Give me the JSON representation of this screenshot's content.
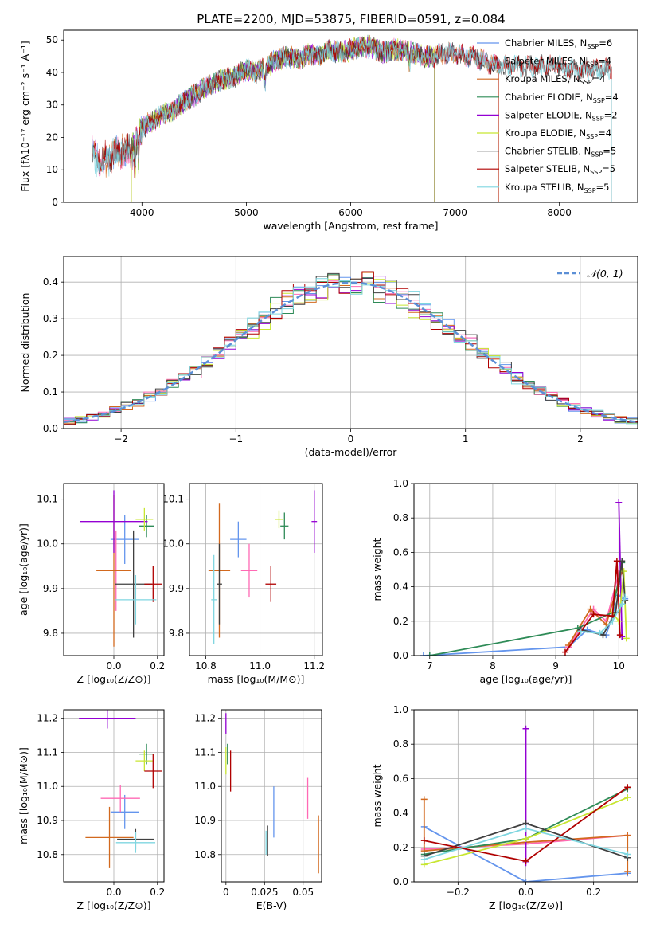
{
  "title": "PLATE=2200, MJD=53875, FIBERID=0591, z=0.084",
  "colors": {
    "ChabrierMILES": "#6495ed",
    "SalpeterMILES": "#ff69b4",
    "KroupaMILES": "#d2691e",
    "ChabrierELODIE": "#2e8b57",
    "SalpeterELODIE": "#9400d3",
    "KroupaELODIE": "#c8e632",
    "ChabrierSTELIB": "#404040",
    "SalpeterSTELIB": "#b00000",
    "KroupaSTELIB": "#7fd6e0",
    "normal": "#5b8fd6"
  },
  "legend_spectrum": [
    {
      "base": "Chabrier MILES, N",
      "sub": "SSP",
      "tail": "=6",
      "color_key": "ChabrierMILES"
    },
    {
      "base": "Salpeter MILES, N",
      "sub": "SSP",
      "tail": "=4",
      "color_key": "SalpeterMILES"
    },
    {
      "base": "Kroupa MILES, N",
      "sub": "SSP",
      "tail": "=4",
      "color_key": "KroupaMILES"
    },
    {
      "base": "Chabrier ELODIE, N",
      "sub": "SSP",
      "tail": "=4",
      "color_key": "ChabrierELODIE"
    },
    {
      "base": "Salpeter ELODIE, N",
      "sub": "SSP",
      "tail": "=2",
      "color_key": "SalpeterELODIE"
    },
    {
      "base": "Kroupa ELODIE, N",
      "sub": "SSP",
      "tail": "=4",
      "color_key": "KroupaELODIE"
    },
    {
      "base": "Chabrier STELIB, N",
      "sub": "SSP",
      "tail": "=5",
      "color_key": "ChabrierSTELIB"
    },
    {
      "base": "Salpeter STELIB, N",
      "sub": "SSP",
      "tail": "=5",
      "color_key": "SalpeterSTELIB"
    },
    {
      "base": "Kroupa STELIB, N",
      "sub": "SSP",
      "tail": "=5",
      "color_key": "KroupaSTELIB"
    }
  ],
  "chart_data": [
    {
      "id": "spectrum",
      "type": "line",
      "xlabel": "wavelength [Angstrom, rest frame]",
      "ylabel": "Flux [fλ10⁻¹⁷ erg cm⁻² s⁻¹ A⁻¹]",
      "xlim": [
        3250,
        8750
      ],
      "ylim": [
        0,
        53
      ],
      "xticks": [
        4000,
        5000,
        6000,
        7000,
        8000
      ],
      "yticks": [
        0,
        10,
        20,
        30,
        40,
        50
      ],
      "grid": false,
      "legend": "top-right",
      "envelope": {
        "x": [
          3520,
          3600,
          3700,
          3800,
          3900,
          4000,
          4100,
          4200,
          4300,
          4400,
          4500,
          4600,
          4700,
          4800,
          4900,
          5000,
          5100,
          5200,
          5300,
          5400,
          5500,
          5600,
          5700,
          5800,
          5900,
          6000,
          6100,
          6200,
          6300,
          6400,
          6500,
          6600,
          6700,
          6800,
          6900,
          7000,
          7100,
          7200,
          7300,
          7400,
          7500,
          7600,
          7700,
          7800,
          7900,
          8000,
          8100,
          8200,
          8300,
          8400,
          8500
        ],
        "y": [
          16,
          12,
          14,
          16,
          15,
          23,
          25,
          27,
          28,
          31,
          33,
          35,
          37,
          38,
          39,
          41,
          40,
          42,
          44,
          45,
          44,
          46,
          45,
          47,
          46,
          47,
          48,
          48,
          46,
          47,
          47,
          46,
          45,
          45,
          46,
          46,
          45,
          45,
          43,
          42,
          42,
          42,
          42,
          42,
          42,
          42,
          41,
          41,
          41,
          41,
          41
        ]
      },
      "model_ranges": [
        {
          "key": "ChabrierMILES",
          "x": [
            3520,
            7420
          ]
        },
        {
          "key": "SalpeterMILES",
          "x": [
            3520,
            7420
          ]
        },
        {
          "key": "KroupaMILES",
          "x": [
            3520,
            7420
          ]
        },
        {
          "key": "ChabrierELODIE",
          "x": [
            3900,
            6800
          ]
        },
        {
          "key": "SalpeterELODIE",
          "x": [
            3900,
            6800
          ]
        },
        {
          "key": "KroupaELODIE",
          "x": [
            3900,
            6800
          ]
        },
        {
          "key": "ChabrierSTELIB",
          "x": [
            3520,
            8500
          ]
        },
        {
          "key": "SalpeterSTELIB",
          "x": [
            3520,
            8500
          ]
        },
        {
          "key": "KroupaSTELIB",
          "x": [
            3520,
            8500
          ]
        }
      ]
    },
    {
      "id": "residuals",
      "type": "line",
      "xlabel": "(data-model)/error",
      "ylabel": "Normed distribution",
      "xlim": [
        -2.5,
        2.5
      ],
      "ylim": [
        0,
        0.47
      ],
      "xticks": [
        -2,
        -1,
        0,
        1,
        2
      ],
      "yticks": [
        0.0,
        0.1,
        0.2,
        0.3,
        0.4
      ],
      "grid": true,
      "legend": "top-right",
      "legend_label": "𝒩(0, 1)",
      "bin_width": 0.1,
      "series_keys": [
        "ChabrierMILES",
        "SalpeterMILES",
        "KroupaMILES",
        "ChabrierELODIE",
        "SalpeterELODIE",
        "KroupaELODIE",
        "ChabrierSTELIB",
        "SalpeterSTELIB",
        "KroupaSTELIB"
      ]
    },
    {
      "id": "age_vs_Z",
      "type": "scatter",
      "xlabel": "Z [log₁₀(Z/Z⊙)]",
      "ylabel": "age  [log₁₀(age/yr)]",
      "xlim": [
        -0.23,
        0.23
      ],
      "ylim": [
        9.75,
        10.135
      ],
      "xticks": [
        0.0,
        0.2
      ],
      "yticks": [
        9.8,
        9.9,
        10.0,
        10.1
      ],
      "grid": true,
      "points": [
        {
          "key": "ChabrierMILES",
          "x": 0.05,
          "y": 10.01,
          "xerr": 0.065,
          "yerr": 0.055
        },
        {
          "key": "SalpeterMILES",
          "x": 0.01,
          "y": 9.94,
          "xerr": 0.07,
          "yerr": 0.09
        },
        {
          "key": "KroupaMILES",
          "x": 0.0,
          "y": 9.94,
          "xerr": 0.08,
          "yerr": 0.17
        },
        {
          "key": "ChabrierELODIE",
          "x": 0.15,
          "y": 10.04,
          "xerr": 0.035,
          "yerr": 0.025
        },
        {
          "key": "SalpeterELODIE",
          "x": 0.0,
          "y": 10.05,
          "xerr": 0.155,
          "yerr": 0.07
        },
        {
          "key": "KroupaELODIE",
          "x": 0.14,
          "y": 10.055,
          "xerr": 0.04,
          "yerr": 0.025
        },
        {
          "key": "ChabrierSTELIB",
          "x": 0.09,
          "y": 9.91,
          "xerr": 0.085,
          "yerr": 0.12
        },
        {
          "key": "SalpeterSTELIB",
          "x": 0.18,
          "y": 9.91,
          "xerr": 0.04,
          "yerr": 0.04
        },
        {
          "key": "KroupaSTELIB",
          "x": 0.1,
          "y": 9.875,
          "xerr": 0.095,
          "yerr": 0.055
        }
      ]
    },
    {
      "id": "age_vs_mass",
      "type": "scatter",
      "xlabel": "mass [log₁₀(M/M⊙)]",
      "ylabel": "",
      "xlim": [
        10.74,
        11.23
      ],
      "ylim": [
        9.75,
        10.135
      ],
      "xticks": [
        10.8,
        11.0,
        11.2
      ],
      "yticks": [
        9.8,
        9.9,
        10.0,
        10.1
      ],
      "grid": true,
      "points": [
        {
          "key": "ChabrierMILES",
          "x": 10.92,
          "y": 10.01,
          "xerr": 0.03,
          "yerr": 0.04
        },
        {
          "key": "SalpeterMILES",
          "x": 10.96,
          "y": 9.94,
          "xerr": 0.03,
          "yerr": 0.06
        },
        {
          "key": "KroupaMILES",
          "x": 10.85,
          "y": 9.94,
          "xerr": 0.04,
          "yerr": 0.15
        },
        {
          "key": "ChabrierELODIE",
          "x": 11.09,
          "y": 10.04,
          "xerr": 0.015,
          "yerr": 0.03
        },
        {
          "key": "SalpeterELODIE",
          "x": 11.2,
          "y": 10.05,
          "xerr": 0.01,
          "yerr": 0.07
        },
        {
          "key": "KroupaELODIE",
          "x": 11.07,
          "y": 10.055,
          "xerr": 0.015,
          "yerr": 0.02
        },
        {
          "key": "ChabrierSTELIB",
          "x": 10.85,
          "y": 9.91,
          "xerr": 0.01,
          "yerr": 0.09
        },
        {
          "key": "SalpeterSTELIB",
          "x": 11.04,
          "y": 9.91,
          "xerr": 0.02,
          "yerr": 0.04
        },
        {
          "key": "KroupaSTELIB",
          "x": 10.83,
          "y": 9.875,
          "xerr": 0.01,
          "yerr": 0.1
        }
      ]
    },
    {
      "id": "weight_vs_age",
      "type": "line",
      "xlabel": "age  [log₁₀(age/yr)]",
      "ylabel": "mass weight",
      "xlim": [
        6.75,
        10.3
      ],
      "ylim": [
        0,
        1.0
      ],
      "xticks": [
        7,
        8,
        9,
        10
      ],
      "yticks": [
        0.0,
        0.2,
        0.4,
        0.6,
        0.8,
        1.0
      ],
      "grid": true,
      "series": [
        {
          "key": "ChabrierMILES",
          "x": [
            6.9,
            9.2,
            9.5,
            9.8,
            10.0,
            10.1
          ],
          "y": [
            0.0,
            0.05,
            0.15,
            0.12,
            0.35,
            0.33
          ]
        },
        {
          "key": "SalpeterMILES",
          "x": [
            9.2,
            9.6,
            9.8,
            10.0
          ],
          "y": [
            0.05,
            0.27,
            0.2,
            0.48
          ]
        },
        {
          "key": "KroupaMILES",
          "x": [
            9.2,
            9.55,
            9.8,
            10.05
          ],
          "y": [
            0.06,
            0.27,
            0.18,
            0.49
          ]
        },
        {
          "key": "ChabrierELODIE",
          "x": [
            7.0,
            9.35,
            9.9,
            10.05
          ],
          "y": [
            0.0,
            0.16,
            0.25,
            0.54
          ]
        },
        {
          "key": "SalpeterELODIE",
          "x": [
            10.0,
            10.05
          ],
          "y": [
            0.89,
            0.11
          ]
        },
        {
          "key": "KroupaELODIE",
          "x": [
            9.9,
            10.0,
            10.08,
            10.12
          ],
          "y": [
            0.25,
            0.2,
            0.49,
            0.1
          ]
        },
        {
          "key": "ChabrierSTELIB",
          "x": [
            9.4,
            9.75,
            9.95,
            10.05,
            10.1
          ],
          "y": [
            0.15,
            0.12,
            0.25,
            0.55,
            0.32
          ]
        },
        {
          "key": "SalpeterSTELIB",
          "x": [
            9.15,
            9.6,
            9.9,
            9.97,
            10.02
          ],
          "y": [
            0.02,
            0.24,
            0.23,
            0.55,
            0.12
          ]
        },
        {
          "key": "KroupaSTELIB",
          "x": [
            9.4,
            9.7,
            9.9,
            10.05,
            10.1
          ],
          "y": [
            0.14,
            0.13,
            0.2,
            0.3,
            0.34
          ]
        }
      ]
    },
    {
      "id": "mass_vs_Z",
      "type": "scatter",
      "xlabel": "Z [log₁₀(Z/Z⊙)]",
      "ylabel": "mass [log₁₀(M/M⊙)]",
      "xlim": [
        -0.23,
        0.23
      ],
      "ylim": [
        10.72,
        11.225
      ],
      "xticks": [
        0.0,
        0.2
      ],
      "yticks": [
        10.8,
        10.9,
        11.0,
        11.1,
        11.2
      ],
      "grid": true,
      "points": [
        {
          "key": "ChabrierMILES",
          "x": 0.05,
          "y": 10.925,
          "xerr": 0.065,
          "yerr": 0.05
        },
        {
          "key": "SalpeterMILES",
          "x": 0.03,
          "y": 10.965,
          "xerr": 0.09,
          "yerr": 0.04
        },
        {
          "key": "KroupaMILES",
          "x": -0.02,
          "y": 10.85,
          "xerr": 0.11,
          "yerr": 0.09
        },
        {
          "key": "ChabrierELODIE",
          "x": 0.15,
          "y": 11.095,
          "xerr": 0.035,
          "yerr": 0.03
        },
        {
          "key": "SalpeterELODIE",
          "x": -0.03,
          "y": 11.2,
          "xerr": 0.13,
          "yerr": 0.03
        },
        {
          "key": "KroupaELODIE",
          "x": 0.14,
          "y": 11.075,
          "xerr": 0.04,
          "yerr": 0.03
        },
        {
          "key": "ChabrierSTELIB",
          "x": 0.1,
          "y": 10.845,
          "xerr": 0.085,
          "yerr": 0.03
        },
        {
          "key": "SalpeterSTELIB",
          "x": 0.18,
          "y": 11.045,
          "xerr": 0.04,
          "yerr": 0.05
        },
        {
          "key": "KroupaSTELIB",
          "x": 0.1,
          "y": 10.835,
          "xerr": 0.09,
          "yerr": 0.03
        }
      ]
    },
    {
      "id": "mass_vs_ebv",
      "type": "scatter",
      "xlabel": "E(B-V)",
      "ylabel": "",
      "xlim": [
        -0.003,
        0.062
      ],
      "ylim": [
        10.72,
        11.225
      ],
      "xticks": [
        0.0,
        0.025,
        0.05
      ],
      "yticks": [
        10.8,
        10.9,
        11.0,
        11.1,
        11.2
      ],
      "grid": true,
      "points": [
        {
          "key": "ChabrierMILES",
          "x": 0.031,
          "y": 10.925,
          "xerr": 0.0,
          "yerr": 0.075
        },
        {
          "key": "SalpeterMILES",
          "x": 0.053,
          "y": 10.965,
          "xerr": 0.0,
          "yerr": 0.06
        },
        {
          "key": "KroupaMILES",
          "x": 0.06,
          "y": 10.83,
          "xerr": 0.0,
          "yerr": 0.085
        },
        {
          "key": "ChabrierELODIE",
          "x": 0.001,
          "y": 11.095,
          "xerr": 0.0,
          "yerr": 0.03
        },
        {
          "key": "SalpeterELODIE",
          "x": 0.0,
          "y": 11.185,
          "xerr": 0.0,
          "yerr": 0.03
        },
        {
          "key": "KroupaELODIE",
          "x": 0.0,
          "y": 11.075,
          "xerr": 0.0,
          "yerr": 0.04
        },
        {
          "key": "ChabrierSTELIB",
          "x": 0.027,
          "y": 10.84,
          "xerr": 0.0,
          "yerr": 0.045
        },
        {
          "key": "SalpeterSTELIB",
          "x": 0.003,
          "y": 11.045,
          "xerr": 0.0,
          "yerr": 0.06
        },
        {
          "key": "KroupaSTELIB",
          "x": 0.026,
          "y": 10.835,
          "xerr": 0.0,
          "yerr": 0.035
        }
      ]
    },
    {
      "id": "weight_vs_Z",
      "type": "line",
      "xlabel": "Z [log₁₀(Z/Z⊙)]",
      "ylabel": "mass weight",
      "xlim": [
        -0.33,
        0.33
      ],
      "ylim": [
        0,
        1.0
      ],
      "xticks": [
        -0.2,
        0.0,
        0.2
      ],
      "yticks": [
        0.0,
        0.2,
        0.4,
        0.6,
        0.8,
        1.0
      ],
      "grid": true,
      "series": [
        {
          "key": "ChabrierMILES",
          "x": [
            -0.3,
            0.0,
            0.3
          ],
          "y": [
            0.32,
            0.0,
            0.05
          ]
        },
        {
          "key": "SalpeterMILES",
          "x": [
            -0.3,
            0.0,
            0.3
          ],
          "y": [
            0.19,
            0.22,
            0.27
          ]
        },
        {
          "key": "KroupaMILES",
          "x": [
            -0.3,
            -0.3,
            0.0,
            0.3,
            0.3
          ],
          "y": [
            0.48,
            0.18,
            0.23,
            0.27,
            0.06
          ]
        },
        {
          "key": "ChabrierELODIE",
          "x": [
            -0.3,
            0.0,
            0.3
          ],
          "y": [
            0.16,
            0.25,
            0.54
          ]
        },
        {
          "key": "SalpeterELODIE",
          "x": [
            0.0,
            0.0
          ],
          "y": [
            0.89,
            0.11
          ]
        },
        {
          "key": "KroupaELODIE",
          "x": [
            -0.3,
            0.0,
            0.3
          ],
          "y": [
            0.1,
            0.25,
            0.49
          ]
        },
        {
          "key": "ChabrierSTELIB",
          "x": [
            -0.3,
            0.0,
            0.3
          ],
          "y": [
            0.15,
            0.34,
            0.14
          ]
        },
        {
          "key": "SalpeterSTELIB",
          "x": [
            -0.3,
            0.0,
            0.3
          ],
          "y": [
            0.24,
            0.12,
            0.55
          ]
        },
        {
          "key": "KroupaSTELIB",
          "x": [
            -0.3,
            0.0,
            0.3
          ],
          "y": [
            0.13,
            0.31,
            0.16
          ]
        }
      ]
    }
  ]
}
